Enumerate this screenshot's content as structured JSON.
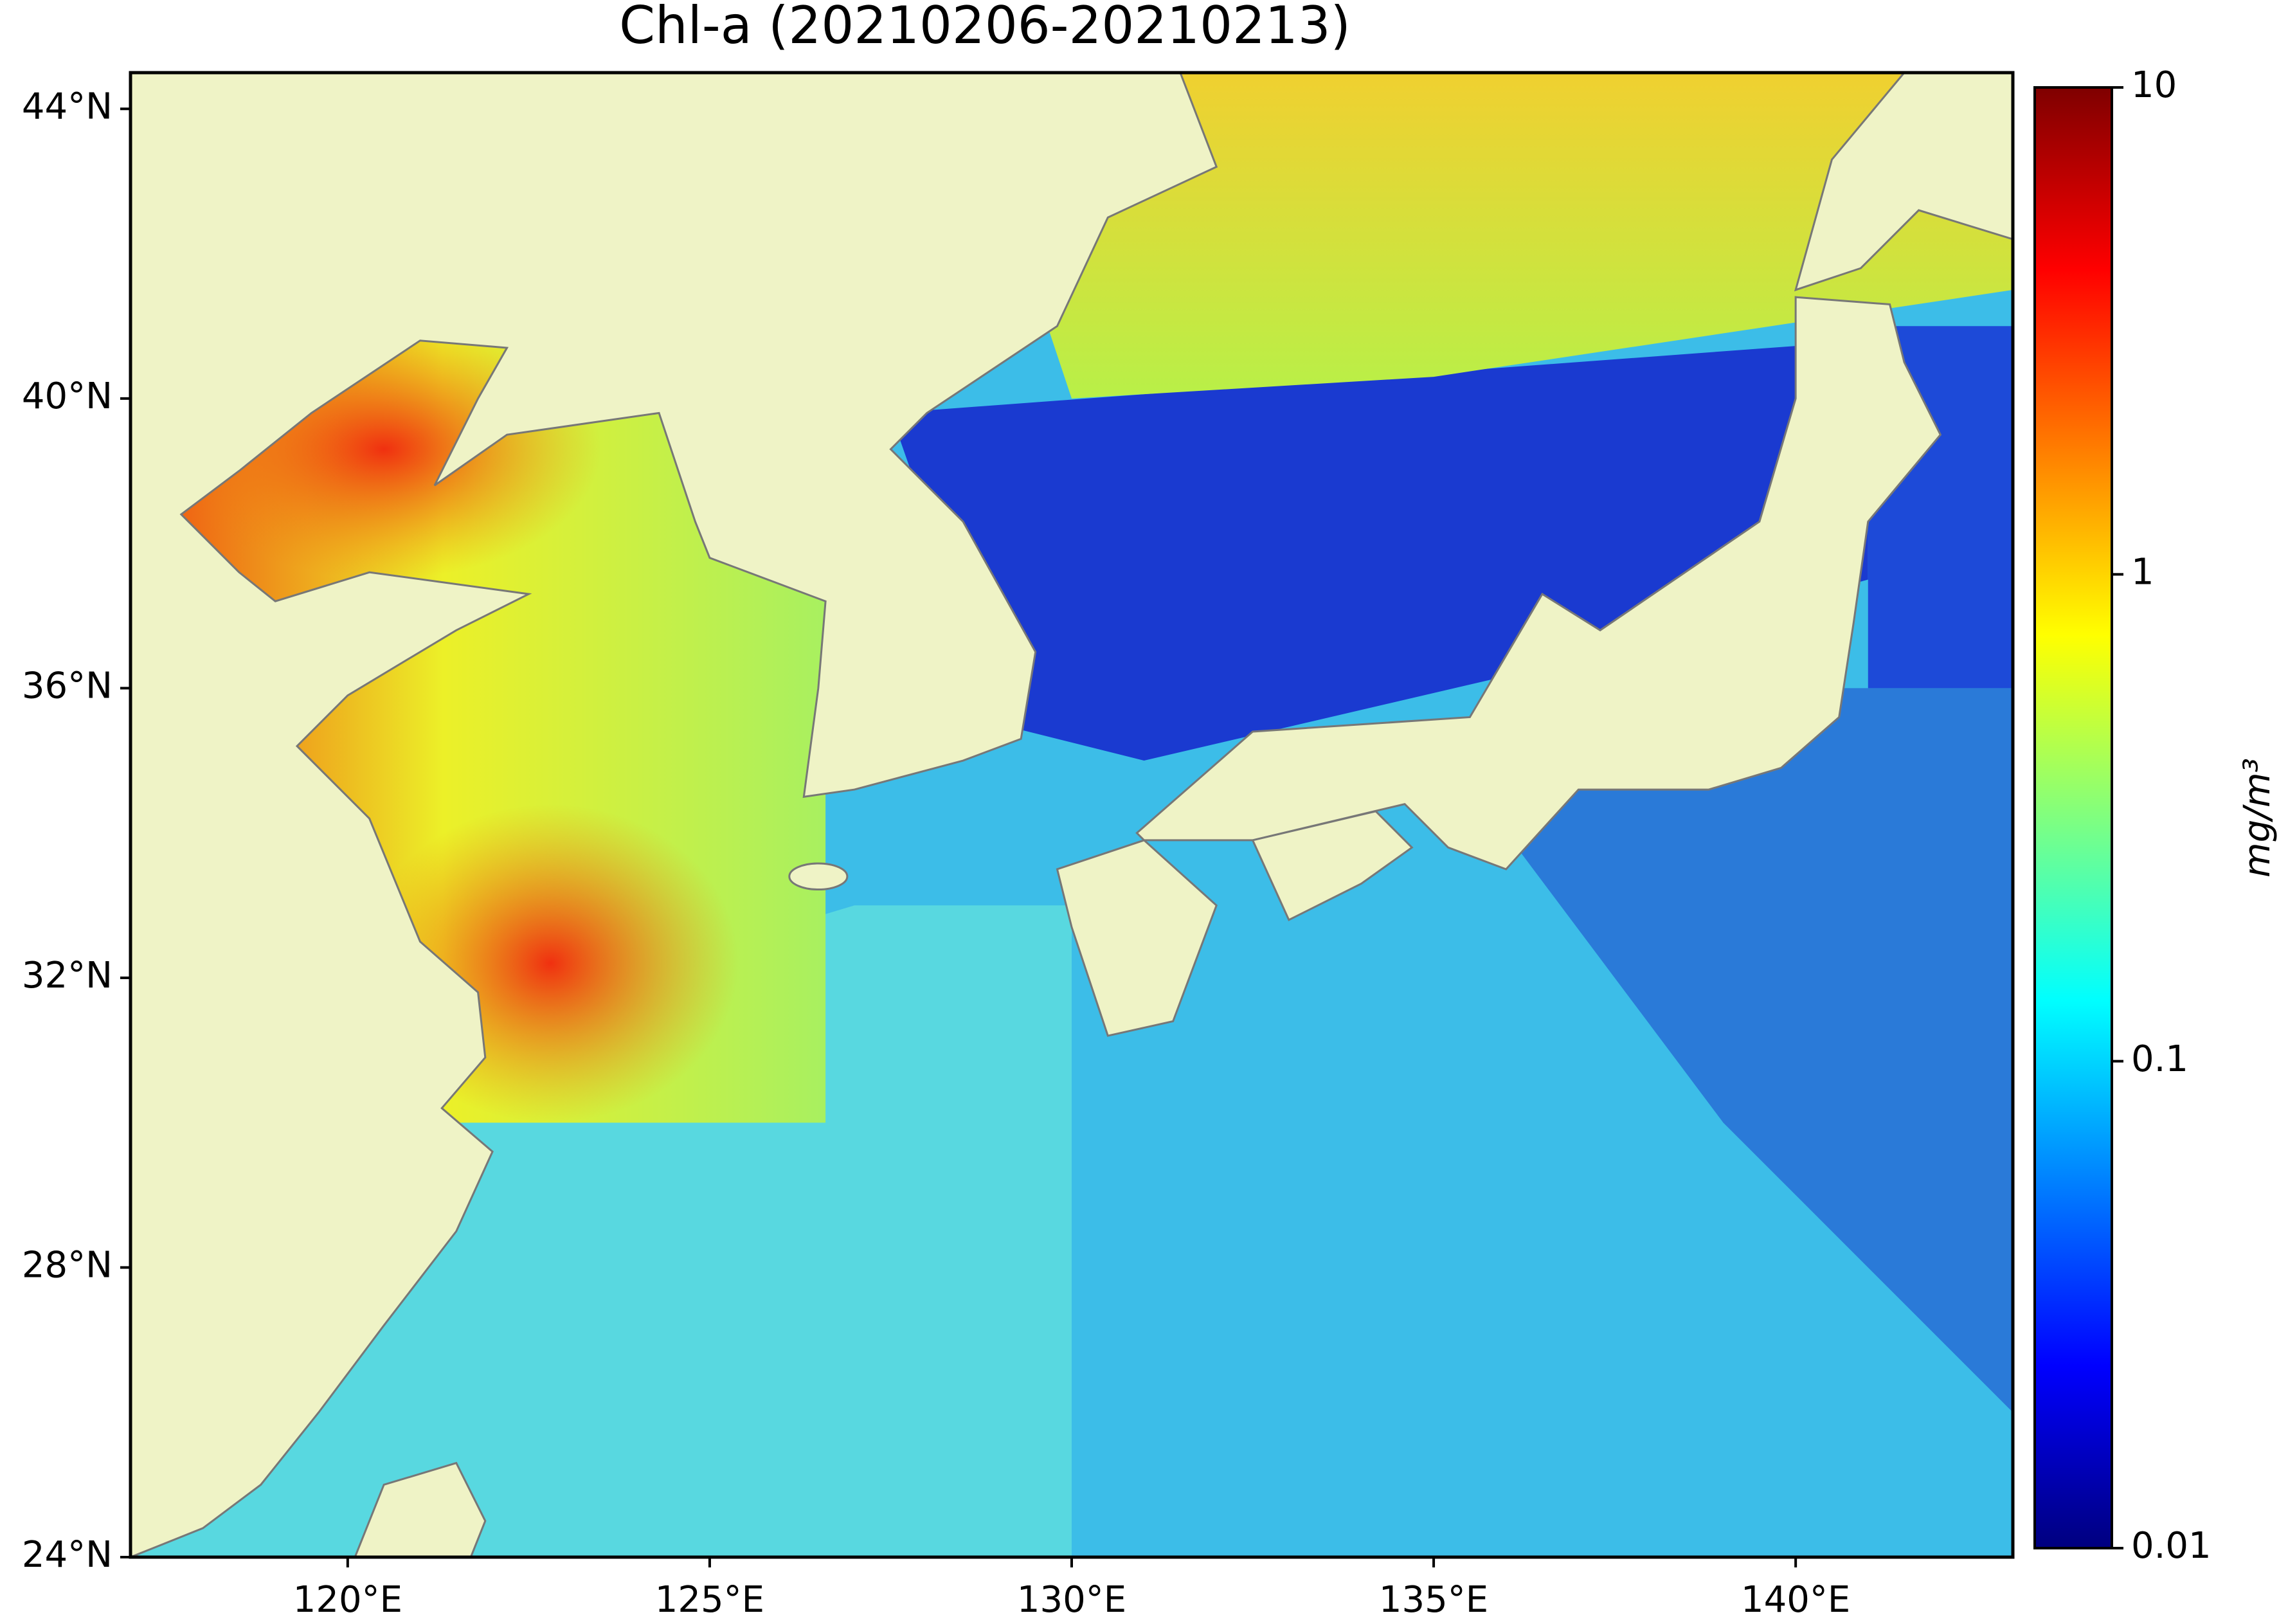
{
  "chart_data": {
    "type": "map",
    "title": "Chl-a (20210206-20210213)",
    "xlim": [
      117,
      143
    ],
    "ylim": [
      24,
      44.5
    ],
    "xticks": [
      {
        "value": 120,
        "label": "120°E"
      },
      {
        "value": 125,
        "label": "125°E"
      },
      {
        "value": 130,
        "label": "130°E"
      },
      {
        "value": 135,
        "label": "135°E"
      },
      {
        "value": 140,
        "label": "140°E"
      }
    ],
    "yticks": [
      {
        "value": 24,
        "label": "24°N"
      },
      {
        "value": 28,
        "label": "28°N"
      },
      {
        "value": 32,
        "label": "32°N"
      },
      {
        "value": 36,
        "label": "36°N"
      },
      {
        "value": 40,
        "label": "40°N"
      },
      {
        "value": 44,
        "label": "44°N"
      }
    ],
    "colorbar": {
      "label": "mg/m³",
      "lim": [
        0.01,
        10
      ],
      "ticks": [
        0.01,
        0.1,
        1,
        10
      ],
      "log": true
    }
  }
}
